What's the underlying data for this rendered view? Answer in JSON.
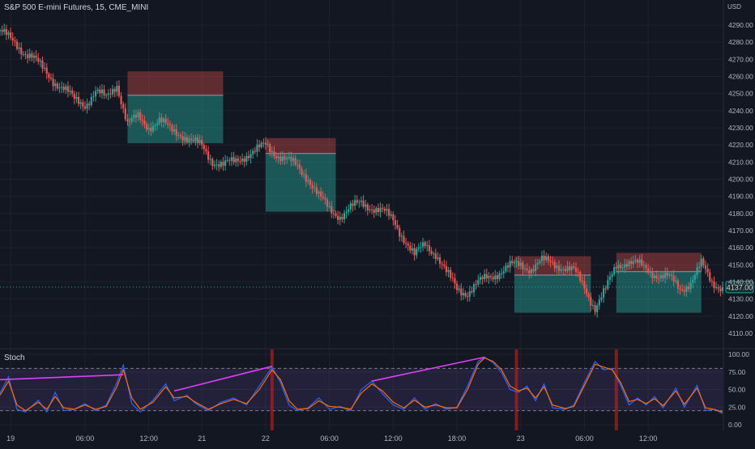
{
  "header": {
    "title": "S&P 500 E-mini Futures, 15, CME_MINI",
    "currency": "USD"
  },
  "stoch": {
    "label": "Stoch"
  },
  "price_tag": "4137.00",
  "colors": {
    "background": "#131722",
    "grid": "#1e222d",
    "up": "#26a69a",
    "down": "#ef5350",
    "stoch_k": "#2962ff",
    "stoch_d": "#ff6d00",
    "divergence": "#e040fb",
    "band": "#7e57c2",
    "signal": "#b71c1c"
  },
  "chart_data": [
    {
      "type": "candlestick",
      "title": "S&P 500 E-mini Futures, 15, CME_MINI",
      "y_ticks": [
        4290,
        4280,
        4270,
        4260,
        4250,
        4240,
        4230,
        4220,
        4210,
        4200,
        4190,
        4180,
        4170,
        4160,
        4150,
        4140,
        4130,
        4120,
        4110
      ],
      "x_ticks": [
        "19",
        "06:00",
        "12:00",
        "21",
        "22",
        "06:00",
        "12:00",
        "18:00",
        "23",
        "06:00",
        "12:00"
      ],
      "ylim": [
        4105,
        4295
      ],
      "last_price": 4137.0,
      "price_path": [
        [
          0,
          4287
        ],
        [
          5,
          4281
        ],
        [
          10,
          4276
        ],
        [
          15,
          4272
        ],
        [
          20,
          4264
        ],
        [
          25,
          4258
        ],
        [
          30,
          4253
        ],
        [
          35,
          4246
        ],
        [
          40,
          4244
        ],
        [
          45,
          4251
        ],
        [
          50,
          4247
        ],
        [
          55,
          4256
        ],
        [
          60,
          4232
        ],
        [
          65,
          4236
        ],
        [
          70,
          4231
        ],
        [
          75,
          4234
        ],
        [
          80,
          4229
        ],
        [
          85,
          4227
        ],
        [
          90,
          4222
        ],
        [
          95,
          4219
        ],
        [
          100,
          4211
        ],
        [
          105,
          4208
        ],
        [
          110,
          4210
        ],
        [
          115,
          4214
        ],
        [
          120,
          4216
        ],
        [
          125,
          4220
        ],
        [
          130,
          4215
        ],
        [
          135,
          4211
        ],
        [
          140,
          4207
        ],
        [
          145,
          4201
        ],
        [
          150,
          4190
        ],
        [
          155,
          4182
        ],
        [
          160,
          4179
        ],
        [
          165,
          4183
        ],
        [
          170,
          4186
        ],
        [
          175,
          4184
        ],
        [
          180,
          4181
        ],
        [
          185,
          4176
        ],
        [
          190,
          4166
        ],
        [
          195,
          4155
        ],
        [
          200,
          4162
        ],
        [
          205,
          4157
        ],
        [
          210,
          4145
        ],
        [
          215,
          4136
        ],
        [
          220,
          4134
        ],
        [
          225,
          4139
        ],
        [
          230,
          4143
        ],
        [
          235,
          4146
        ],
        [
          240,
          4149
        ],
        [
          245,
          4150
        ],
        [
          250,
          4148
        ],
        [
          255,
          4152
        ],
        [
          260,
          4151
        ],
        [
          265,
          4149
        ],
        [
          270,
          4146
        ],
        [
          275,
          4137
        ],
        [
          280,
          4125
        ],
        [
          285,
          4135
        ],
        [
          290,
          4150
        ],
        [
          295,
          4152
        ],
        [
          300,
          4150
        ],
        [
          305,
          4147
        ],
        [
          310,
          4144
        ],
        [
          315,
          4142
        ],
        [
          320,
          4136
        ],
        [
          325,
          4140
        ],
        [
          330,
          4150
        ],
        [
          335,
          4140
        ],
        [
          340,
          4137
        ]
      ],
      "position_boxes": [
        {
          "x_start": 60,
          "x_end": 105,
          "entry": 4249,
          "stop": 4263,
          "target": 4221
        },
        {
          "x_start": 125,
          "x_end": 158,
          "entry": 4215,
          "stop": 4224,
          "target": 4181
        },
        {
          "x_start": 242,
          "x_end": 278,
          "entry": 4144,
          "stop": 4155,
          "target": 4122
        },
        {
          "x_start": 290,
          "x_end": 330,
          "entry": 4146,
          "stop": 4157,
          "target": 4122
        }
      ]
    },
    {
      "type": "line",
      "title": "Stoch",
      "y_ticks": [
        100.0,
        75.0,
        50.0,
        25.0,
        0.0
      ],
      "ylim": [
        0,
        100
      ],
      "bands": [
        20,
        80
      ],
      "series": [
        {
          "key": "k",
          "points": [
            [
              0,
              45
            ],
            [
              4,
              68
            ],
            [
              8,
              22
            ],
            [
              12,
              18
            ],
            [
              18,
              35
            ],
            [
              22,
              18
            ],
            [
              26,
              46
            ],
            [
              30,
              20
            ],
            [
              35,
              22
            ],
            [
              40,
              30
            ],
            [
              45,
              20
            ],
            [
              50,
              28
            ],
            [
              55,
              60
            ],
            [
              58,
              85
            ],
            [
              62,
              30
            ],
            [
              66,
              18
            ],
            [
              72,
              35
            ],
            [
              78,
              58
            ],
            [
              82,
              34
            ],
            [
              88,
              42
            ],
            [
              92,
              30
            ],
            [
              98,
              20
            ],
            [
              104,
              32
            ],
            [
              110,
              38
            ],
            [
              116,
              28
            ],
            [
              122,
              55
            ],
            [
              128,
              82
            ],
            [
              132,
              60
            ],
            [
              136,
              28
            ],
            [
              140,
              20
            ],
            [
              145,
              24
            ],
            [
              150,
              38
            ],
            [
              155,
              22
            ],
            [
              160,
              26
            ],
            [
              165,
              20
            ],
            [
              170,
              50
            ],
            [
              175,
              62
            ],
            [
              180,
              44
            ],
            [
              185,
              28
            ],
            [
              190,
              22
            ],
            [
              195,
              38
            ],
            [
              200,
              22
            ],
            [
              205,
              30
            ],
            [
              210,
              22
            ],
            [
              215,
              25
            ],
            [
              220,
              55
            ],
            [
              225,
              90
            ],
            [
              228,
              96
            ],
            [
              232,
              88
            ],
            [
              236,
              74
            ],
            [
              240,
              50
            ],
            [
              244,
              46
            ],
            [
              248,
              55
            ],
            [
              252,
              34
            ],
            [
              256,
              58
            ],
            [
              260,
              24
            ],
            [
              266,
              22
            ],
            [
              270,
              28
            ],
            [
              275,
              60
            ],
            [
              280,
              90
            ],
            [
              284,
              78
            ],
            [
              288,
              80
            ],
            [
              292,
              56
            ],
            [
              296,
              28
            ],
            [
              300,
              38
            ],
            [
              304,
              28
            ],
            [
              308,
              40
            ],
            [
              312,
              24
            ],
            [
              318,
              52
            ],
            [
              322,
              25
            ],
            [
              328,
              56
            ],
            [
              332,
              20
            ],
            [
              336,
              22
            ],
            [
              340,
              16
            ]
          ]
        },
        {
          "key": "d",
          "points": [
            [
              0,
              42
            ],
            [
              4,
              62
            ],
            [
              8,
              28
            ],
            [
              12,
              20
            ],
            [
              18,
              32
            ],
            [
              22,
              22
            ],
            [
              26,
              40
            ],
            [
              30,
              24
            ],
            [
              35,
              22
            ],
            [
              40,
              28
            ],
            [
              45,
              22
            ],
            [
              50,
              26
            ],
            [
              55,
              54
            ],
            [
              58,
              78
            ],
            [
              62,
              38
            ],
            [
              66,
              22
            ],
            [
              72,
              32
            ],
            [
              78,
              54
            ],
            [
              82,
              38
            ],
            [
              88,
              40
            ],
            [
              92,
              32
            ],
            [
              98,
              22
            ],
            [
              104,
              30
            ],
            [
              110,
              36
            ],
            [
              116,
              30
            ],
            [
              122,
              50
            ],
            [
              128,
              78
            ],
            [
              132,
              64
            ],
            [
              136,
              34
            ],
            [
              140,
              22
            ],
            [
              145,
              23
            ],
            [
              150,
              34
            ],
            [
              155,
              26
            ],
            [
              160,
              25
            ],
            [
              165,
              22
            ],
            [
              170,
              45
            ],
            [
              175,
              58
            ],
            [
              180,
              48
            ],
            [
              185,
              32
            ],
            [
              190,
              24
            ],
            [
              195,
              35
            ],
            [
              200,
              25
            ],
            [
              205,
              28
            ],
            [
              210,
              24
            ],
            [
              215,
              24
            ],
            [
              220,
              50
            ],
            [
              225,
              86
            ],
            [
              228,
              95
            ],
            [
              232,
              90
            ],
            [
              236,
              78
            ],
            [
              240,
              55
            ],
            [
              244,
              48
            ],
            [
              248,
              52
            ],
            [
              252,
              38
            ],
            [
              256,
              54
            ],
            [
              260,
              28
            ],
            [
              266,
              23
            ],
            [
              270,
              26
            ],
            [
              275,
              56
            ],
            [
              280,
              86
            ],
            [
              284,
              82
            ],
            [
              288,
              78
            ],
            [
              292,
              60
            ],
            [
              296,
              33
            ],
            [
              300,
              36
            ],
            [
              304,
              30
            ],
            [
              308,
              37
            ],
            [
              312,
              27
            ],
            [
              318,
              48
            ],
            [
              322,
              29
            ],
            [
              328,
              52
            ],
            [
              332,
              24
            ],
            [
              336,
              22
            ],
            [
              340,
              18
            ]
          ]
        }
      ],
      "divergence_lines": [
        {
          "x1": 0,
          "y1": 64,
          "x2": 58,
          "y2": 71
        },
        {
          "x1": 82,
          "y1": 48,
          "x2": 128,
          "y2": 83
        },
        {
          "x1": 175,
          "y1": 62,
          "x2": 228,
          "y2": 96
        }
      ],
      "signal_bars": [
        128,
        243,
        290
      ]
    }
  ]
}
